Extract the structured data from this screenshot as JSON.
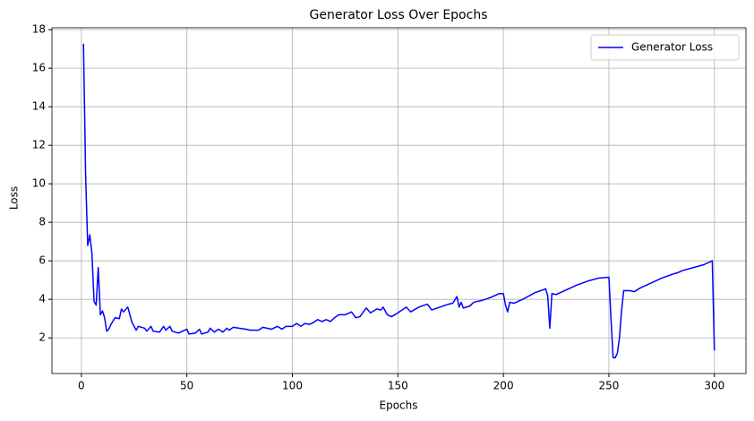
{
  "chart_data": {
    "type": "line",
    "title": "Generator Loss Over Epochs",
    "xlabel": "Epochs",
    "ylabel": "Loss",
    "x": [
      1,
      2,
      3,
      4,
      5,
      6,
      7,
      8,
      9,
      10,
      11,
      12,
      13,
      14,
      16,
      18,
      19,
      20,
      22,
      24,
      26,
      27,
      30,
      31,
      33,
      34,
      37,
      39,
      40,
      42,
      43,
      46,
      50,
      51,
      54,
      56,
      57,
      60,
      61,
      63,
      65,
      67,
      69,
      70,
      72,
      75,
      78,
      80,
      84,
      86,
      90,
      93,
      95,
      97,
      100,
      102,
      104,
      106,
      108,
      110,
      112,
      114,
      116,
      118,
      120,
      122,
      125,
      128,
      130,
      132,
      135,
      137,
      140,
      142,
      143,
      145,
      147,
      150,
      154,
      156,
      160,
      164,
      166,
      170,
      174,
      176,
      178,
      179,
      180,
      181,
      184,
      186,
      190,
      194,
      198,
      200,
      201,
      202,
      203,
      205,
      210,
      215,
      219,
      220,
      221,
      222,
      223,
      225,
      230,
      235,
      240,
      245,
      250,
      251,
      252,
      253,
      254,
      255,
      256,
      257,
      260,
      262,
      265,
      270,
      275,
      280,
      283,
      285,
      290,
      295,
      297,
      299,
      300
    ],
    "series": [
      {
        "name": "Generator Loss",
        "color": "#0000ff",
        "values": [
          17.27,
          10.5,
          6.8,
          7.35,
          6.4,
          3.9,
          3.7,
          5.65,
          3.2,
          3.4,
          3.05,
          2.35,
          2.45,
          2.7,
          3.05,
          3.0,
          3.5,
          3.35,
          3.6,
          2.8,
          2.4,
          2.6,
          2.5,
          2.35,
          2.6,
          2.35,
          2.3,
          2.6,
          2.4,
          2.6,
          2.35,
          2.25,
          2.45,
          2.2,
          2.25,
          2.45,
          2.2,
          2.3,
          2.5,
          2.3,
          2.45,
          2.3,
          2.5,
          2.4,
          2.55,
          2.5,
          2.45,
          2.4,
          2.4,
          2.55,
          2.45,
          2.6,
          2.45,
          2.6,
          2.6,
          2.75,
          2.6,
          2.75,
          2.7,
          2.8,
          2.95,
          2.85,
          2.95,
          2.85,
          3.05,
          3.2,
          3.2,
          3.35,
          3.05,
          3.1,
          3.55,
          3.3,
          3.5,
          3.45,
          3.6,
          3.2,
          3.1,
          3.3,
          3.6,
          3.35,
          3.6,
          3.75,
          3.45,
          3.6,
          3.75,
          3.8,
          4.15,
          3.6,
          3.85,
          3.55,
          3.65,
          3.85,
          3.95,
          4.1,
          4.3,
          4.3,
          3.7,
          3.35,
          3.85,
          3.8,
          4.05,
          4.35,
          4.5,
          4.55,
          4.2,
          2.5,
          4.3,
          4.25,
          4.5,
          4.75,
          4.95,
          5.1,
          5.15,
          3.0,
          0.97,
          0.97,
          1.2,
          2.0,
          3.4,
          4.45,
          4.45,
          4.4,
          4.6,
          4.85,
          5.1,
          5.3,
          5.4,
          5.5,
          5.65,
          5.8,
          5.9,
          6.0,
          1.35
        ]
      }
    ],
    "xlim": [
      -13.95,
      314.95
    ],
    "xticks": [
      0,
      50,
      100,
      150,
      200,
      250,
      300
    ],
    "ylim": [
      0.15,
      18.1
    ],
    "yticks": [
      2,
      4,
      6,
      8,
      10,
      12,
      14,
      16,
      18
    ],
    "grid": true,
    "legend": "upper right"
  }
}
